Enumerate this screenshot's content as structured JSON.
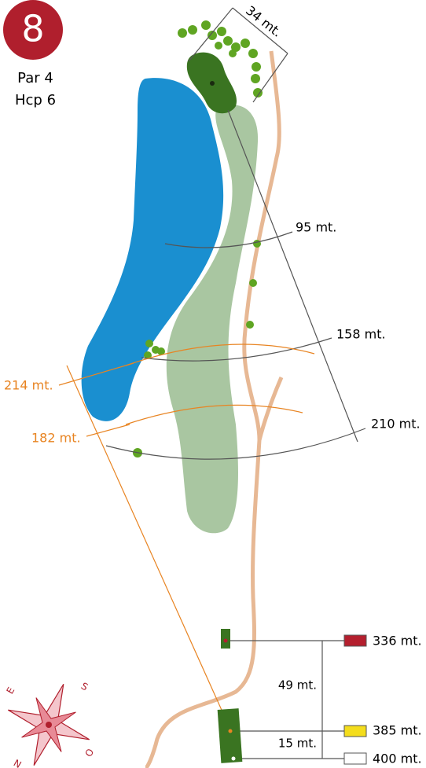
{
  "hole": {
    "number": "8",
    "par": "Par 4",
    "hcp": "Hcp 6",
    "green_width": "34 mt.",
    "black_distances": [
      "95 mt.",
      "158 mt.",
      "210 mt."
    ],
    "orange_distances": [
      "214 mt.",
      "182 mt."
    ],
    "tees": [
      "336 mt.",
      "385 mt.",
      "400 mt."
    ],
    "tee_gaps": [
      "49 mt.",
      "15 mt."
    ],
    "compass": [
      "E",
      "S",
      "O",
      "N"
    ]
  }
}
